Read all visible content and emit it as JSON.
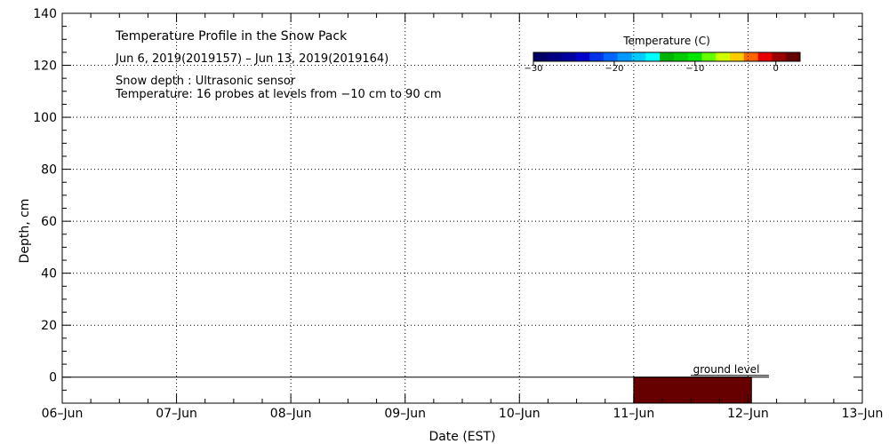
{
  "chart_data": {
    "type": "heatmap",
    "title": "Temperature Profile in the Snow Pack",
    "subtitle": "Jun  6, 2019(2019157) – Jun 13, 2019(2019164)",
    "annotations": [
      "Snow depth : Ultrasonic sensor",
      "Temperature: 16 probes at levels from −10 cm to 90 cm"
    ],
    "xlabel": "Date (EST)",
    "ylabel": "Depth, cm",
    "x_ticks": [
      "06–Jun",
      "07–Jun",
      "08–Jun",
      "09–Jun",
      "10–Jun",
      "11–Jun",
      "12–Jun",
      "13–Jun"
    ],
    "xlim": [
      0,
      7
    ],
    "ylim": [
      -10,
      140
    ],
    "y_ticks": [
      0,
      20,
      40,
      60,
      80,
      100,
      120,
      140
    ],
    "grid": true,
    "ground_level": {
      "label": "ground level",
      "depth": 0
    },
    "cells": [
      {
        "x_start": 5.0,
        "x_end": 6.03,
        "y_start": -10,
        "y_end": 0,
        "color": "#660000"
      }
    ],
    "colorbar": {
      "title": "Temperature (C)",
      "range": [
        -30,
        3
      ],
      "ticks": [
        -30,
        -20,
        -10,
        0
      ],
      "tick_labels": [
        "−30",
        "−20",
        "−10",
        "0"
      ],
      "colors": [
        "#000066",
        "#000080",
        "#00009c",
        "#0000c8",
        "#0033e6",
        "#0066ff",
        "#0099ff",
        "#00ccff",
        "#00ffff",
        "#00b300",
        "#00cc00",
        "#00e600",
        "#66ff00",
        "#ccff00",
        "#ffcc00",
        "#ff6600",
        "#e60000",
        "#990000",
        "#660000"
      ]
    }
  }
}
